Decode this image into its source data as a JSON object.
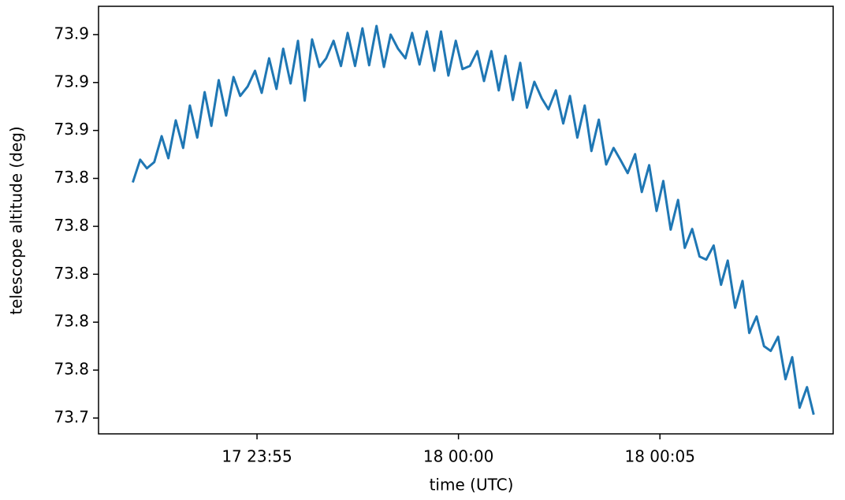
{
  "chart_data": {
    "type": "line",
    "xlabel": "time (UTC)",
    "ylabel": "telescope altitude (deg)",
    "x": [
      "17 23:51:55",
      "17 23:52:06",
      "17 23:52:16",
      "17 23:52:27",
      "17 23:52:38",
      "17 23:52:48",
      "17 23:52:59",
      "17 23:53:10",
      "17 23:53:20",
      "17 23:53:31",
      "17 23:53:42",
      "17 23:53:52",
      "17 23:54:03",
      "17 23:54:14",
      "17 23:54:25",
      "17 23:54:35",
      "17 23:54:46",
      "17 23:54:57",
      "17 23:55:07",
      "17 23:55:18",
      "17 23:55:29",
      "17 23:55:39",
      "17 23:55:50",
      "17 23:56:01",
      "17 23:56:11",
      "17 23:56:22",
      "17 23:56:33",
      "17 23:56:43",
      "17 23:56:54",
      "17 23:57:05",
      "17 23:57:15",
      "17 23:57:26",
      "17 23:57:37",
      "17 23:57:47",
      "17 23:57:58",
      "17 23:58:09",
      "17 23:58:19",
      "17 23:58:30",
      "17 23:58:41",
      "17 23:58:51",
      "17 23:59:02",
      "17 23:59:13",
      "17 23:59:24",
      "17 23:59:34",
      "17 23:59:45",
      "17 23:59:56",
      "18 00:00:06",
      "18 00:00:17",
      "18 00:00:28",
      "18 00:00:38",
      "18 00:00:49",
      "18 00:01:00",
      "18 00:01:10",
      "18 00:01:21",
      "18 00:01:32",
      "18 00:01:42",
      "18 00:01:53",
      "18 00:02:04",
      "18 00:02:14",
      "18 00:02:25",
      "18 00:02:36",
      "18 00:02:46",
      "18 00:02:57",
      "18 00:03:08",
      "18 00:03:18",
      "18 00:03:29",
      "18 00:03:40",
      "18 00:03:51",
      "18 00:04:01",
      "18 00:04:12",
      "18 00:04:23",
      "18 00:04:33",
      "18 00:04:44",
      "18 00:04:55",
      "18 00:05:05",
      "18 00:05:16",
      "18 00:05:27",
      "18 00:05:37",
      "18 00:05:48",
      "18 00:05:59",
      "18 00:06:09",
      "18 00:06:20",
      "18 00:06:31",
      "18 00:06:41",
      "18 00:06:52",
      "18 00:07:03",
      "18 00:07:13",
      "18 00:07:24",
      "18 00:07:35",
      "18 00:07:45",
      "18 00:07:56",
      "18 00:08:07",
      "18 00:08:17",
      "18 00:08:28",
      "18 00:08:39",
      "18 00:08:49"
    ],
    "series": [
      {
        "color": "#1f77b4",
        "values": [
          73.8383,
          73.8478,
          73.8442,
          73.8468,
          73.8576,
          73.8484,
          73.8642,
          73.8527,
          73.8704,
          73.857,
          73.876,
          73.8619,
          73.881,
          73.8662,
          73.8823,
          73.8744,
          73.8783,
          73.8849,
          73.8757,
          73.8901,
          73.8773,
          73.8941,
          73.8796,
          73.8974,
          73.8724,
          73.898,
          73.8865,
          73.8901,
          73.8974,
          73.8869,
          73.9007,
          73.8869,
          73.9026,
          73.8872,
          73.9036,
          73.8865,
          73.9,
          73.8941,
          73.8901,
          73.9007,
          73.8875,
          73.9013,
          73.8849,
          73.9013,
          73.8829,
          73.8974,
          73.8856,
          73.8869,
          73.8931,
          73.8806,
          73.8931,
          73.8767,
          73.8911,
          73.8727,
          73.8882,
          73.8695,
          73.8803,
          73.8734,
          73.8688,
          73.8767,
          73.8629,
          73.8744,
          73.857,
          73.8704,
          73.8514,
          73.8645,
          73.8458,
          73.8527,
          73.8478,
          73.8422,
          73.8501,
          73.8343,
          73.8455,
          73.8264,
          73.8389,
          73.8186,
          73.831,
          73.811,
          73.8189,
          73.8074,
          73.8061,
          73.812,
          73.7956,
          73.8057,
          73.786,
          73.7972,
          73.7755,
          73.7824,
          73.77,
          73.768,
          73.7739,
          73.7562,
          73.7654,
          73.7443,
          73.7529,
          73.7414
        ]
      }
    ],
    "xlim": [
      "17 23:51:04",
      "18 00:09:18"
    ],
    "xticks": [
      "17 23:55",
      "18 00:00",
      "18 00:05"
    ],
    "ylim": [
      73.7334,
      73.9118
    ],
    "yticks": [
      {
        "value": 73.74,
        "label": "73.7"
      },
      {
        "value": 73.76,
        "label": "73.8"
      },
      {
        "value": 73.78,
        "label": "73.8"
      },
      {
        "value": 73.8,
        "label": "73.8"
      },
      {
        "value": 73.82,
        "label": "73.8"
      },
      {
        "value": 73.84,
        "label": "73.8"
      },
      {
        "value": 73.86,
        "label": "73.9"
      },
      {
        "value": 73.88,
        "label": "73.9"
      },
      {
        "value": 73.9,
        "label": "73.9"
      }
    ],
    "grid": false
  }
}
